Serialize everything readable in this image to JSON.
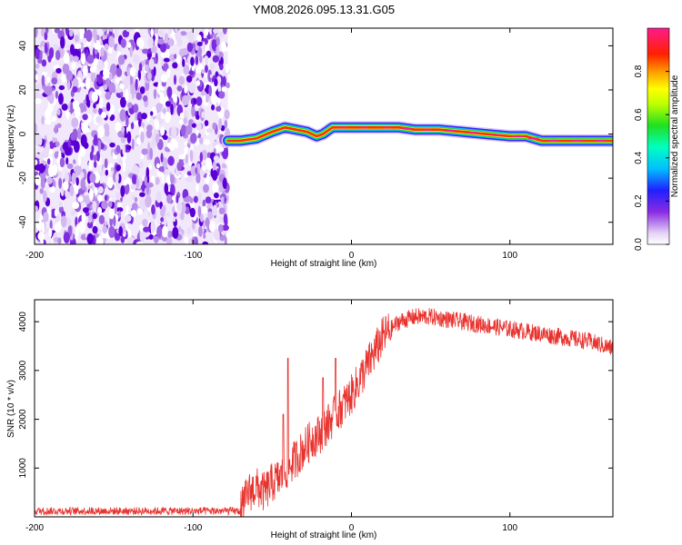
{
  "title": "YM08.2026.095.13.31.G05",
  "chart_data": [
    {
      "type": "heatmap",
      "xlabel": "Height of straight line (km)",
      "ylabel": "Frequency (Hz)",
      "xlim": [
        -200,
        165
      ],
      "ylim": [
        -50,
        48
      ],
      "xticks": [
        -200,
        -100,
        0,
        100
      ],
      "xtick_labels": [
        "-200",
        "-100",
        "0",
        "100"
      ],
      "yticks": [
        -40,
        -20,
        0,
        20,
        40
      ],
      "ytick_labels": [
        "-40",
        "-20",
        "0",
        "20",
        "40"
      ],
      "noise_region_x": [
        -200,
        -78
      ],
      "signal_ridge": {
        "x": [
          -78,
          -70,
          -60,
          -50,
          -42,
          -35,
          -28,
          -22,
          -18,
          -12,
          0,
          15,
          30,
          40,
          55,
          70,
          85,
          100,
          110,
          120,
          135,
          150,
          165
        ],
        "freq": [
          -3,
          -3,
          -2,
          1,
          3,
          2,
          1,
          -1,
          0,
          3,
          3,
          3,
          3,
          2,
          2,
          1,
          0,
          -1,
          -1,
          -3,
          -3,
          -3,
          -3
        ]
      },
      "colorbar": {
        "label": "Normalized spectral amplitude",
        "ticks": [
          0.0,
          0.2,
          0.4,
          0.6,
          0.8
        ],
        "tick_labels": [
          "0.0",
          "0.2",
          "0.4",
          "0.6",
          "0.8"
        ],
        "range": [
          0,
          1
        ]
      }
    },
    {
      "type": "line",
      "xlabel": "Height of straight line (km)",
      "ylabel": "SNR (10 * v/v)",
      "xlim": [
        -200,
        165
      ],
      "ylim": [
        0,
        4450
      ],
      "xticks": [
        -200,
        -100,
        0,
        100
      ],
      "xtick_labels": [
        "-200",
        "-100",
        "0",
        "100"
      ],
      "yticks": [
        1000,
        2000,
        3000,
        4000
      ],
      "ytick_labels": [
        "1000",
        "2000",
        "3000",
        "4000"
      ],
      "series": [
        {
          "name": "SNR",
          "color": "#e8322e",
          "x": [
            -200,
            -180,
            -160,
            -140,
            -120,
            -100,
            -80,
            -70,
            -65,
            -60,
            -55,
            -50,
            -45,
            -40,
            -35,
            -30,
            -25,
            -20,
            -15,
            -10,
            -5,
            0,
            5,
            10,
            20,
            30,
            40,
            50,
            60,
            70,
            80,
            90,
            100,
            110,
            120,
            130,
            140,
            150,
            160,
            165
          ],
          "values": [
            100,
            100,
            100,
            100,
            100,
            100,
            100,
            120,
            500,
            600,
            500,
            700,
            800,
            1000,
            1200,
            1400,
            1600,
            1700,
            1900,
            2100,
            2300,
            2500,
            2800,
            3100,
            3700,
            4000,
            4100,
            4100,
            4050,
            4000,
            3950,
            3900,
            3850,
            3800,
            3750,
            3700,
            3650,
            3600,
            3500,
            3450
          ]
        }
      ],
      "spikes": [
        {
          "x": -43,
          "value": 2100
        },
        {
          "x": -40,
          "value": 3250
        },
        {
          "x": -18,
          "value": 2850
        },
        {
          "x": -10,
          "value": 3250
        }
      ]
    }
  ]
}
